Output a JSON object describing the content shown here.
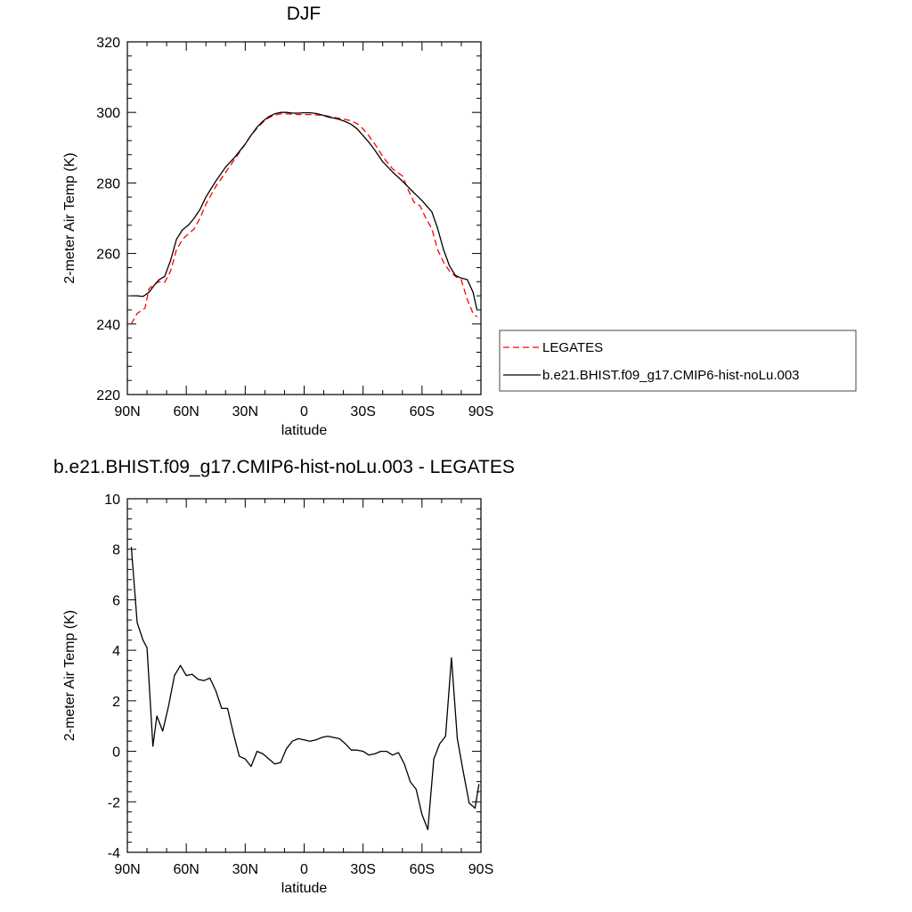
{
  "chart_data": [
    {
      "type": "line",
      "title": "DJF",
      "xlabel": "latitude",
      "ylabel": "2-meter Air Temp (K)",
      "xlim": [
        90,
        -90
      ],
      "ylim": [
        220,
        320
      ],
      "x_tick_values": [
        90,
        60,
        30,
        0,
        -30,
        -60,
        -90
      ],
      "x_tick_labels": [
        "90N",
        "60N",
        "30N",
        "0",
        "30S",
        "60S",
        "90S"
      ],
      "y_tick_values": [
        220,
        240,
        260,
        280,
        300,
        320
      ],
      "y_tick_labels": [
        "220",
        "240",
        "260",
        "280",
        "300",
        "320"
      ],
      "grid": false,
      "legend": "right",
      "series": [
        {
          "name": "LEGATES",
          "color": "#ff0000",
          "dash": "dashed",
          "x": [
            88,
            85,
            81,
            79,
            77,
            74,
            71,
            68,
            65,
            62,
            59,
            56,
            53,
            50,
            45,
            40,
            35,
            30,
            27,
            24,
            21,
            18,
            15,
            12,
            9,
            6,
            3,
            0,
            -3,
            -6,
            -9,
            -12,
            -15,
            -18,
            -21,
            -24,
            -27,
            -30,
            -33,
            -36,
            -40,
            -45,
            -50,
            -53,
            -56,
            -59,
            -62,
            -65,
            -68,
            -71,
            -74,
            -77,
            -80,
            -83,
            -86,
            -88
          ],
          "y": [
            240,
            243,
            244.5,
            250,
            251,
            252,
            251.8,
            255,
            261,
            264,
            265.5,
            267,
            270,
            274,
            279,
            283,
            287,
            291,
            293.5,
            295.5,
            297.2,
            298.5,
            299.2,
            299.6,
            299.6,
            299.5,
            299.4,
            299.4,
            299.4,
            299.3,
            299.2,
            299,
            298.6,
            298.3,
            298,
            297.6,
            296.8,
            295.3,
            293.3,
            291,
            287.5,
            284,
            282,
            278,
            274.5,
            273.5,
            270,
            267,
            261,
            257.5,
            255,
            253.5,
            252.5,
            247,
            243,
            242
          ]
        },
        {
          "name": "b.e21.BHIST.f09_g17.CMIP6-hist-noLu.003",
          "color": "#000000",
          "dash": "solid",
          "x": [
            88,
            85,
            82,
            79,
            77,
            74,
            71,
            68,
            65,
            62,
            59,
            56,
            53,
            50,
            45,
            40,
            35,
            30,
            27,
            24,
            21,
            18,
            15,
            12,
            9,
            6,
            3,
            0,
            -3,
            -6,
            -9,
            -12,
            -15,
            -18,
            -21,
            -24,
            -27,
            -30,
            -33,
            -36,
            -40,
            -45,
            -50,
            -55,
            -60,
            -65,
            -68,
            -71,
            -74,
            -77,
            -80,
            -83,
            -86,
            -88
          ],
          "y": [
            248,
            248,
            247.8,
            249,
            250.5,
            252.5,
            253.5,
            258,
            264,
            266.7,
            268,
            270,
            272.5,
            276,
            280.5,
            284.5,
            287.5,
            291,
            293.5,
            295.8,
            297.5,
            298.8,
            299.6,
            300,
            300,
            299.8,
            299.8,
            299.9,
            299.9,
            299.7,
            299.3,
            298.7,
            298.4,
            298,
            297.4,
            296.6,
            295.3,
            293.4,
            291.5,
            289.3,
            286,
            283.1,
            280.5,
            277.7,
            275,
            271.8,
            267,
            261,
            256.5,
            253.8,
            253,
            252.6,
            249,
            244
          ]
        }
      ]
    },
    {
      "type": "line",
      "title": "b.e21.BHIST.f09_g17.CMIP6-hist-noLu.003 - LEGATES",
      "xlabel": "latitude",
      "ylabel": "2-meter Air Temp (K)",
      "xlim": [
        90,
        -90
      ],
      "ylim": [
        -4,
        10
      ],
      "x_tick_values": [
        90,
        60,
        30,
        0,
        -30,
        -60,
        -90
      ],
      "x_tick_labels": [
        "90N",
        "60N",
        "30N",
        "0",
        "30S",
        "60S",
        "90S"
      ],
      "y_tick_values": [
        -4,
        -2,
        0,
        2,
        4,
        6,
        8,
        10
      ],
      "y_tick_labels": [
        "-4",
        "-2",
        "0",
        "2",
        "4",
        "6",
        "8",
        "10"
      ],
      "grid": false,
      "series": [
        {
          "color": "#000000",
          "dash": "solid",
          "x": [
            88,
            85,
            82,
            80,
            77,
            75,
            72,
            69,
            66,
            63,
            60,
            57,
            54,
            51,
            48,
            45,
            42,
            39,
            36,
            33,
            30,
            27,
            24,
            21,
            18,
            15,
            12,
            9,
            6,
            3,
            0,
            -3,
            -6,
            -9,
            -12,
            -15,
            -18,
            -21,
            -24,
            -27,
            -30,
            -33,
            -36,
            -39,
            -42,
            -45,
            -48,
            -51,
            -54,
            -57,
            -60,
            -63,
            -66,
            -69,
            -72,
            -75,
            -78,
            -81,
            -84,
            -87,
            -89
          ],
          "y": [
            8.1,
            5.1,
            4.4,
            4.1,
            0.2,
            1.4,
            0.8,
            1.8,
            3,
            3.4,
            3,
            3.05,
            2.85,
            2.8,
            2.9,
            2.4,
            1.7,
            1.7,
            0.7,
            -0.2,
            -0.3,
            -0.6,
            0,
            -0.1,
            -0.3,
            -0.5,
            -0.45,
            0.1,
            0.4,
            0.5,
            0.45,
            0.4,
            0.45,
            0.55,
            0.6,
            0.55,
            0.5,
            0.3,
            0.05,
            0.05,
            0,
            -0.15,
            -0.1,
            0,
            0,
            -0.15,
            -0.05,
            -0.5,
            -1.2,
            -1.5,
            -2.5,
            -3.1,
            -0.3,
            0.3,
            0.6,
            3.7,
            0.5,
            -0.8,
            -2.05,
            -2.25,
            -1.3
          ]
        }
      ]
    }
  ]
}
